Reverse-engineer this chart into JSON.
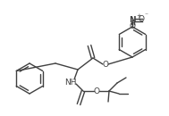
{
  "bg_color": "#ffffff",
  "line_color": "#404040",
  "lw": 1.0,
  "figsize": [
    1.89,
    1.3
  ],
  "dpi": 100,
  "xlim": [
    0,
    189
  ],
  "ylim": [
    0,
    130
  ]
}
